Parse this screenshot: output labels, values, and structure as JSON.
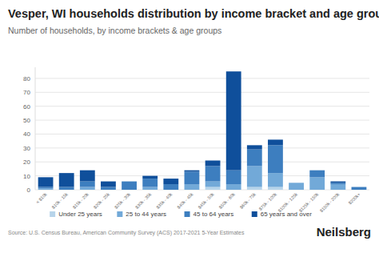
{
  "chart_data": {
    "type": "bar",
    "stacked": true,
    "grid": true,
    "legend": "bottom",
    "title": "Vesper, WI households distribution by income bracket and age group",
    "subtitle": "Number of households, by income brackets & age groups",
    "source": "Source: U.S. Census Bureau, American Community Survey (ACS) 2017-2021 5-Year Estimates",
    "logo": "Neilsberg",
    "categories": [
      "< $10k",
      "$10k - 15k",
      "$15k - 20k",
      "$20k - 25k",
      "$25k - 30k",
      "$30k - 35k",
      "$35k - 40k",
      "$40k - 45k",
      "$45k - 50k",
      "$50k - 60k",
      "$60k - 75k",
      "$75k - 100k",
      "$100k - 125k",
      "$125k - 150k",
      "$150k - 200k",
      "$200k+"
    ],
    "series": [
      {
        "name": "Under 25 years",
        "color": "#b7d4ea",
        "values": [
          0,
          0,
          0,
          0,
          0,
          0,
          0,
          0,
          2,
          0,
          2,
          2,
          0,
          0,
          0,
          0
        ]
      },
      {
        "name": "25 to 44 years",
        "color": "#72a9d8",
        "values": [
          1,
          0,
          2,
          0,
          0,
          2,
          0,
          4,
          4,
          4,
          15,
          10,
          5,
          9,
          4,
          0
        ]
      },
      {
        "name": "45 to 64 years",
        "color": "#3d7ebf",
        "values": [
          1,
          2,
          4,
          2,
          6,
          6,
          4,
          9,
          11,
          10,
          12,
          20,
          0,
          5,
          1,
          2
        ]
      },
      {
        "name": "65 years and over",
        "color": "#0f4f9b",
        "values": [
          7,
          10,
          8,
          4,
          0,
          2,
          4,
          1,
          4,
          71,
          3,
          4,
          0,
          0,
          1,
          0
        ]
      }
    ],
    "ylim": [
      0,
      88
    ],
    "yticks": [
      0,
      10,
      20,
      30,
      40,
      50,
      60,
      70,
      80
    ]
  }
}
